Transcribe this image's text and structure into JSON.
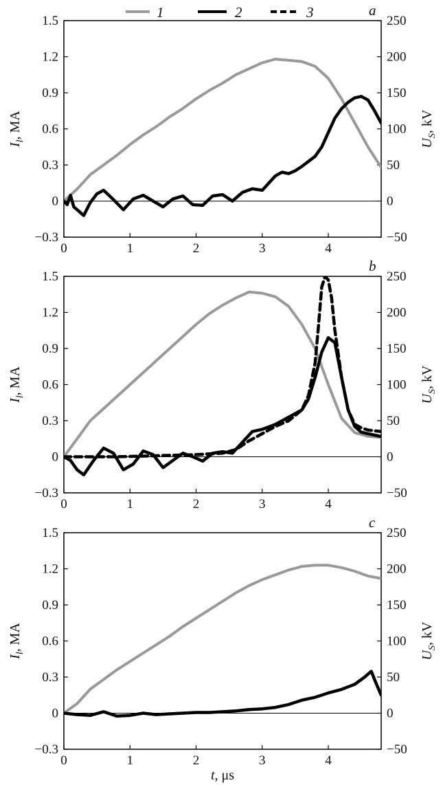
{
  "legend": [
    {
      "label": "1",
      "color": "#999999",
      "dash": "solid"
    },
    {
      "label": "2",
      "color": "#000000",
      "dash": "solid"
    },
    {
      "label": "3",
      "color": "#000000",
      "dash": "dashed"
    }
  ],
  "axis_labels": {
    "left": "I_l, MA",
    "right": "U_S, kV",
    "bottom": "t, μs"
  },
  "chart_data": [
    {
      "panel": "a",
      "type": "line",
      "xlim": [
        0,
        4.8
      ],
      "ylim_left": [
        -0.3,
        1.5
      ],
      "ylim_right": [
        -50,
        250
      ],
      "x_ticks": [
        "0",
        "1",
        "2",
        "3",
        "4"
      ],
      "y_ticks_left": [
        "1.5",
        "1.2",
        "0.9",
        "0.6",
        "0.3",
        "0",
        "−0.3"
      ],
      "y_ticks_right": [
        "250",
        "200",
        "150",
        "100",
        "50",
        "0",
        "−50"
      ],
      "series": [
        {
          "name": "1",
          "axis": "left",
          "color": "#999999",
          "dash": "solid",
          "x": [
            0,
            0.2,
            0.4,
            0.6,
            0.8,
            1.0,
            1.2,
            1.4,
            1.6,
            1.8,
            2.0,
            2.2,
            2.4,
            2.6,
            2.8,
            3.0,
            3.2,
            3.4,
            3.6,
            3.8,
            4.0,
            4.2,
            4.4,
            4.6,
            4.8
          ],
          "y": [
            0.0,
            0.1,
            0.22,
            0.3,
            0.38,
            0.47,
            0.55,
            0.62,
            0.7,
            0.77,
            0.85,
            0.92,
            0.98,
            1.05,
            1.1,
            1.15,
            1.18,
            1.17,
            1.16,
            1.12,
            1.02,
            0.85,
            0.65,
            0.45,
            0.28
          ]
        },
        {
          "name": "2",
          "axis": "right",
          "color": "#000000",
          "dash": "solid",
          "x": [
            0,
            0.05,
            0.1,
            0.15,
            0.2,
            0.3,
            0.4,
            0.5,
            0.6,
            0.75,
            0.9,
            1.05,
            1.2,
            1.35,
            1.5,
            1.65,
            1.8,
            1.95,
            2.1,
            2.25,
            2.4,
            2.55,
            2.7,
            2.85,
            3.0,
            3.1,
            3.2,
            3.3,
            3.4,
            3.5,
            3.6,
            3.7,
            3.8,
            3.9,
            4.0,
            4.1,
            4.2,
            4.3,
            4.4,
            4.5,
            4.6,
            4.7,
            4.8
          ],
          "y": [
            0,
            -5,
            8,
            -8,
            -12,
            -20,
            -2,
            10,
            15,
            2,
            -12,
            3,
            8,
            0,
            -8,
            3,
            7,
            -5,
            -6,
            7,
            9,
            0,
            12,
            17,
            15,
            25,
            35,
            40,
            38,
            42,
            48,
            55,
            62,
            75,
            95,
            115,
            128,
            137,
            143,
            145,
            140,
            125,
            108
          ]
        }
      ]
    },
    {
      "panel": "b",
      "type": "line",
      "xlim": [
        0,
        4.8
      ],
      "ylim_left": [
        -0.3,
        1.5
      ],
      "ylim_right": [
        -50,
        250
      ],
      "x_ticks": [
        "0",
        "1",
        "2",
        "3",
        "4"
      ],
      "y_ticks_left": [
        "1.5",
        "1.2",
        "0.9",
        "0.6",
        "0.3",
        "0",
        "−0.3"
      ],
      "y_ticks_right": [
        "250",
        "200",
        "150",
        "100",
        "50",
        "0",
        "−50"
      ],
      "series": [
        {
          "name": "1",
          "axis": "left",
          "color": "#999999",
          "dash": "solid",
          "x": [
            0,
            0.2,
            0.4,
            0.6,
            0.8,
            1.0,
            1.2,
            1.4,
            1.6,
            1.8,
            2.0,
            2.2,
            2.4,
            2.6,
            2.8,
            3.0,
            3.2,
            3.4,
            3.6,
            3.8,
            4.0,
            4.2,
            4.4,
            4.6,
            4.8
          ],
          "y": [
            0.0,
            0.15,
            0.3,
            0.4,
            0.5,
            0.6,
            0.7,
            0.8,
            0.9,
            1.0,
            1.1,
            1.19,
            1.26,
            1.32,
            1.37,
            1.36,
            1.33,
            1.25,
            1.1,
            0.9,
            0.6,
            0.32,
            0.2,
            0.17,
            0.16
          ]
        },
        {
          "name": "2",
          "axis": "right",
          "color": "#000000",
          "dash": "solid",
          "x": [
            0,
            0.1,
            0.2,
            0.3,
            0.45,
            0.6,
            0.75,
            0.9,
            1.05,
            1.2,
            1.35,
            1.5,
            1.65,
            1.8,
            1.95,
            2.1,
            2.25,
            2.4,
            2.55,
            2.7,
            2.85,
            3.0,
            3.2,
            3.4,
            3.6,
            3.7,
            3.8,
            3.9,
            4.0,
            4.1,
            4.2,
            4.3,
            4.4,
            4.5,
            4.6,
            4.7,
            4.8
          ],
          "y": [
            0,
            -5,
            -18,
            -25,
            -5,
            12,
            5,
            -18,
            -10,
            8,
            3,
            -15,
            -5,
            5,
            0,
            -6,
            5,
            7,
            5,
            20,
            35,
            38,
            45,
            55,
            65,
            80,
            110,
            145,
            165,
            158,
            110,
            65,
            42,
            34,
            32,
            30,
            28
          ]
        },
        {
          "name": "3",
          "axis": "right",
          "color": "#000000",
          "dash": "dashed",
          "x": [
            0,
            0.4,
            0.8,
            1.2,
            1.6,
            2.0,
            2.4,
            2.6,
            2.8,
            3.0,
            3.2,
            3.4,
            3.6,
            3.7,
            3.8,
            3.85,
            3.9,
            3.95,
            4.0,
            4.05,
            4.1,
            4.2,
            4.3,
            4.4,
            4.5,
            4.6,
            4.7,
            4.8
          ],
          "y": [
            0,
            0,
            0,
            1,
            2,
            3,
            5,
            10,
            22,
            32,
            42,
            50,
            65,
            85,
            130,
            180,
            235,
            250,
            245,
            220,
            175,
            110,
            65,
            45,
            40,
            37,
            36,
            35
          ]
        }
      ]
    },
    {
      "panel": "c",
      "type": "line",
      "xlim": [
        0,
        4.8
      ],
      "ylim_left": [
        -0.3,
        1.5
      ],
      "ylim_right": [
        -50,
        250
      ],
      "x_ticks": [
        "0",
        "1",
        "2",
        "3",
        "4"
      ],
      "y_ticks_left": [
        "1.5",
        "1.2",
        "0.9",
        "0.6",
        "0.3",
        "0",
        "−0.3"
      ],
      "y_ticks_right": [
        "250",
        "200",
        "150",
        "100",
        "50",
        "0",
        "−50"
      ],
      "series": [
        {
          "name": "1",
          "axis": "left",
          "color": "#999999",
          "dash": "solid",
          "x": [
            0,
            0.2,
            0.4,
            0.6,
            0.8,
            1.0,
            1.2,
            1.4,
            1.6,
            1.8,
            2.0,
            2.2,
            2.4,
            2.6,
            2.8,
            3.0,
            3.2,
            3.4,
            3.6,
            3.8,
            4.0,
            4.2,
            4.4,
            4.6,
            4.8
          ],
          "y": [
            0.0,
            0.08,
            0.2,
            0.28,
            0.36,
            0.43,
            0.5,
            0.57,
            0.64,
            0.72,
            0.79,
            0.86,
            0.93,
            1.0,
            1.06,
            1.11,
            1.15,
            1.19,
            1.22,
            1.23,
            1.23,
            1.21,
            1.18,
            1.14,
            1.12
          ]
        },
        {
          "name": "2",
          "axis": "right",
          "color": "#000000",
          "dash": "solid",
          "x": [
            0,
            0.2,
            0.4,
            0.6,
            0.8,
            1.0,
            1.2,
            1.4,
            1.6,
            1.8,
            2.0,
            2.2,
            2.4,
            2.6,
            2.8,
            3.0,
            3.2,
            3.4,
            3.6,
            3.8,
            4.0,
            4.2,
            4.4,
            4.55,
            4.65,
            4.72,
            4.8
          ],
          "y": [
            0,
            -2,
            -3,
            2,
            -4,
            -3,
            0,
            -2,
            -1,
            0,
            1,
            1,
            2,
            3,
            5,
            6,
            8,
            12,
            18,
            22,
            28,
            33,
            40,
            50,
            58,
            42,
            25
          ]
        }
      ]
    }
  ]
}
